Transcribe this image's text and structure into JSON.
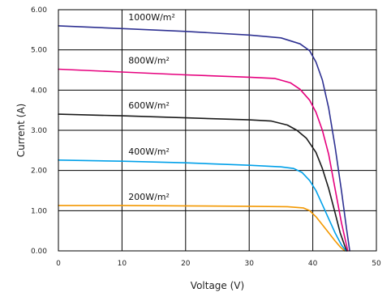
{
  "chart_data": {
    "type": "line",
    "xlabel": "Voltage (V)",
    "ylabel": "Current (A)",
    "xlim": [
      0,
      50
    ],
    "ylim": [
      0,
      6
    ],
    "x_ticks": [
      "0",
      "10",
      "20",
      "30",
      "40",
      "50"
    ],
    "y_ticks": [
      "0.00",
      "1.00",
      "2.00",
      "3.00",
      "4.00",
      "5.00",
      "6.00"
    ],
    "grid": true,
    "series": [
      {
        "name": "1000W/m²",
        "color": "#2e3192",
        "x": [
          0,
          10,
          20,
          30,
          35,
          38,
          39.5,
          40.5,
          41.5,
          42.5,
          43.5,
          44.5,
          45.3,
          45.8
        ],
        "y": [
          5.6,
          5.53,
          5.46,
          5.37,
          5.3,
          5.15,
          4.98,
          4.7,
          4.25,
          3.55,
          2.6,
          1.5,
          0.55,
          0.0
        ]
      },
      {
        "name": "800W/m²",
        "color": "#e6007e",
        "x": [
          0,
          10,
          20,
          30,
          34,
          36.5,
          38,
          39.5,
          40.5,
          41.5,
          42.5,
          43.5,
          44.5,
          45.5
        ],
        "y": [
          4.52,
          4.45,
          4.38,
          4.32,
          4.29,
          4.18,
          4.02,
          3.75,
          3.45,
          3.0,
          2.4,
          1.55,
          0.7,
          0.0
        ]
      },
      {
        "name": "600W/m²",
        "color": "#1a1a1a",
        "x": [
          0,
          10,
          20,
          30,
          33.5,
          36,
          37.5,
          39,
          40.5,
          41.5,
          42.5,
          43.5,
          44.3,
          45.3
        ],
        "y": [
          3.4,
          3.36,
          3.31,
          3.26,
          3.23,
          3.13,
          3.0,
          2.8,
          2.45,
          2.05,
          1.55,
          0.95,
          0.45,
          0.0
        ]
      },
      {
        "name": "400W/m²",
        "color": "#00a0e9",
        "x": [
          0,
          10,
          20,
          30,
          35,
          37,
          38.3,
          39.5,
          40.5,
          41.5,
          42.5,
          43.5,
          44.5,
          45.2
        ],
        "y": [
          2.26,
          2.23,
          2.19,
          2.13,
          2.09,
          2.05,
          1.95,
          1.75,
          1.5,
          1.15,
          0.8,
          0.45,
          0.15,
          0.0
        ]
      },
      {
        "name": "200W/m²",
        "color": "#f39800",
        "x": [
          0,
          10,
          20,
          30,
          36,
          38.5,
          39.5,
          40.5,
          41.5,
          42.5,
          43.5,
          44.3,
          45.0
        ],
        "y": [
          1.13,
          1.13,
          1.12,
          1.11,
          1.1,
          1.07,
          1.0,
          0.85,
          0.65,
          0.45,
          0.25,
          0.1,
          0.0
        ]
      }
    ]
  }
}
